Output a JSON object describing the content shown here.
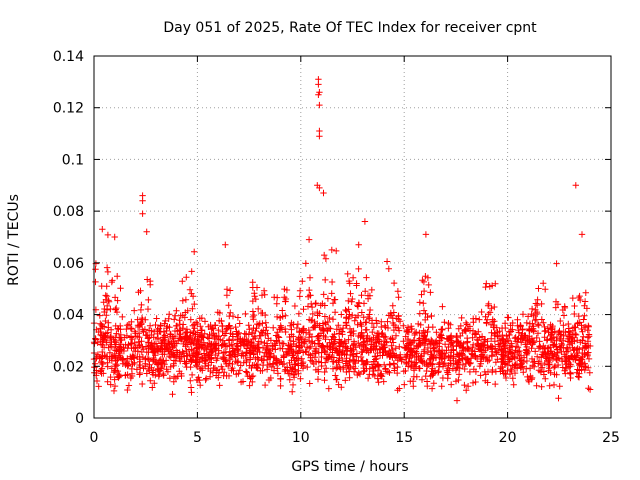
{
  "chart_data": {
    "type": "scatter",
    "title": "Day 051 of 2025, Rate Of TEC Index for receiver cpnt",
    "xlabel": "GPS time / hours",
    "ylabel": "ROTI / TECUs",
    "xlim": [
      0,
      25
    ],
    "ylim": [
      0,
      0.14
    ],
    "xticks": [
      0,
      5,
      10,
      15,
      20,
      25
    ],
    "yticks": [
      0,
      0.02,
      0.04,
      0.06,
      0.08,
      0.1,
      0.12,
      0.14
    ],
    "ytick_labels": [
      "0",
      "0.02",
      "0.04",
      "0.06",
      "0.08",
      "0.1",
      "0.12",
      "0.14"
    ],
    "grid": true,
    "marker": "+",
    "color": "#ff0000",
    "series": [
      {
        "name": "ROTI",
        "notable_points": [
          {
            "x": 10.85,
            "y": 0.131
          },
          {
            "x": 10.85,
            "y": 0.129
          },
          {
            "x": 10.9,
            "y": 0.126
          },
          {
            "x": 10.85,
            "y": 0.125
          },
          {
            "x": 10.9,
            "y": 0.121
          },
          {
            "x": 10.9,
            "y": 0.111
          },
          {
            "x": 10.9,
            "y": 0.109
          },
          {
            "x": 10.8,
            "y": 0.09
          },
          {
            "x": 10.9,
            "y": 0.089
          },
          {
            "x": 11.1,
            "y": 0.087
          },
          {
            "x": 23.3,
            "y": 0.09
          },
          {
            "x": 2.35,
            "y": 0.086
          },
          {
            "x": 2.35,
            "y": 0.084
          },
          {
            "x": 2.35,
            "y": 0.079
          },
          {
            "x": 13.1,
            "y": 0.076
          },
          {
            "x": 0.4,
            "y": 0.073
          },
          {
            "x": 2.55,
            "y": 0.072
          },
          {
            "x": 16.05,
            "y": 0.071
          },
          {
            "x": 23.6,
            "y": 0.071
          },
          {
            "x": 1.0,
            "y": 0.07
          },
          {
            "x": 10.4,
            "y": 0.069
          },
          {
            "x": 6.35,
            "y": 0.067
          },
          {
            "x": 12.8,
            "y": 0.067
          },
          {
            "x": 11.5,
            "y": 0.065
          }
        ],
        "baseline_band": {
          "x_range": [
            0,
            24
          ],
          "typical_min": 0.005,
          "typical_max": 0.045,
          "typical_center": 0.02
        }
      }
    ]
  }
}
